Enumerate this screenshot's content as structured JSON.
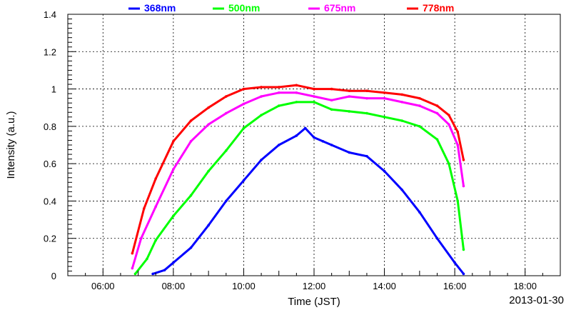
{
  "chart_data": {
    "type": "line",
    "title": "",
    "xlabel": "Time (JST)",
    "ylabel": "Intensity (a.u.)",
    "date_label": "2013-01-30",
    "xlim": [
      "05:00",
      "19:00"
    ],
    "ylim": [
      0,
      1.4
    ],
    "x_ticks": [
      "06:00",
      "08:00",
      "10:00",
      "12:00",
      "14:00",
      "16:00",
      "18:00"
    ],
    "y_ticks": [
      "0",
      "0.2",
      "0.4",
      "0.6",
      "0.8",
      "1",
      "1.2",
      "1.4"
    ],
    "grid": true,
    "legend_position": "top",
    "series": [
      {
        "name": "368nm",
        "color": "#0000ff",
        "x": [
          "07:25",
          "07:45",
          "08:00",
          "08:30",
          "09:00",
          "09:30",
          "10:00",
          "10:30",
          "11:00",
          "11:30",
          "11:45",
          "12:00",
          "12:15",
          "12:30",
          "13:00",
          "13:30",
          "14:00",
          "14:30",
          "15:00",
          "15:30",
          "16:00",
          "16:15"
        ],
        "y": [
          0.01,
          0.03,
          0.07,
          0.15,
          0.27,
          0.4,
          0.51,
          0.62,
          0.7,
          0.75,
          0.79,
          0.74,
          0.72,
          0.7,
          0.66,
          0.64,
          0.56,
          0.46,
          0.34,
          0.2,
          0.07,
          0.01
        ]
      },
      {
        "name": "500nm",
        "color": "#00ff00",
        "x": [
          "06:55",
          "07:15",
          "07:30",
          "08:00",
          "08:30",
          "09:00",
          "09:30",
          "10:00",
          "10:30",
          "11:00",
          "11:30",
          "12:00",
          "12:30",
          "13:00",
          "13:30",
          "14:00",
          "14:30",
          "15:00",
          "15:30",
          "15:50",
          "16:05",
          "16:15"
        ],
        "y": [
          0.01,
          0.09,
          0.19,
          0.32,
          0.43,
          0.56,
          0.67,
          0.79,
          0.86,
          0.91,
          0.93,
          0.93,
          0.89,
          0.88,
          0.87,
          0.85,
          0.83,
          0.8,
          0.73,
          0.6,
          0.4,
          0.14
        ]
      },
      {
        "name": "675nm",
        "color": "#ff00ff",
        "x": [
          "06:50",
          "07:05",
          "07:30",
          "08:00",
          "08:30",
          "09:00",
          "09:30",
          "10:00",
          "10:30",
          "11:00",
          "11:30",
          "12:00",
          "12:30",
          "13:00",
          "13:30",
          "14:00",
          "14:30",
          "15:00",
          "15:30",
          "15:50",
          "16:05",
          "16:15"
        ],
        "y": [
          0.04,
          0.2,
          0.37,
          0.57,
          0.72,
          0.81,
          0.87,
          0.92,
          0.96,
          0.98,
          0.98,
          0.96,
          0.94,
          0.96,
          0.95,
          0.95,
          0.93,
          0.91,
          0.87,
          0.81,
          0.7,
          0.48
        ]
      },
      {
        "name": "778nm",
        "color": "#ff0000",
        "x": [
          "06:50",
          "07:10",
          "07:30",
          "08:00",
          "08:30",
          "09:00",
          "09:30",
          "10:00",
          "10:30",
          "11:00",
          "11:30",
          "12:00",
          "12:30",
          "13:00",
          "13:30",
          "14:00",
          "14:30",
          "15:00",
          "15:30",
          "15:50",
          "16:05",
          "16:15"
        ],
        "y": [
          0.12,
          0.36,
          0.52,
          0.72,
          0.83,
          0.9,
          0.96,
          1.0,
          1.01,
          1.01,
          1.02,
          1.0,
          1.0,
          0.99,
          0.99,
          0.98,
          0.97,
          0.95,
          0.91,
          0.86,
          0.77,
          0.62
        ]
      }
    ]
  }
}
